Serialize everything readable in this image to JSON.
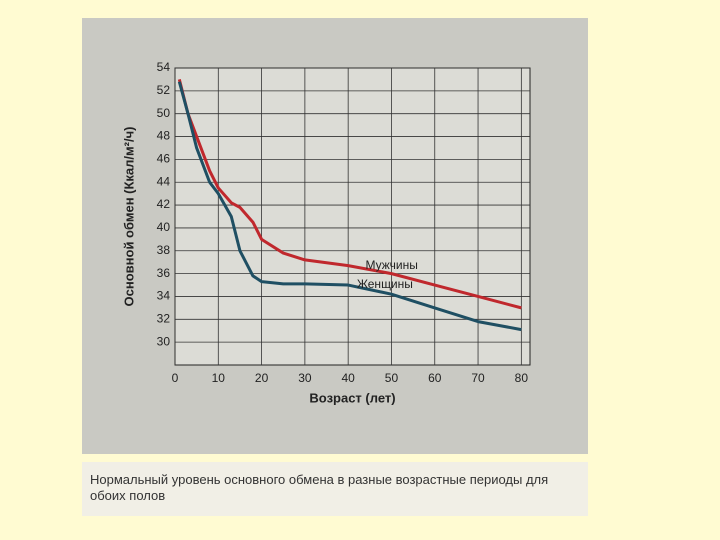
{
  "chart_data": {
    "type": "line",
    "caption": "Нормальный уровень основного обмена в разные возрастные периоды для обоих полов",
    "x_label": "Возраст (лет)",
    "y_label": "Основной обмен (Ккал/м²/ч)",
    "x": [
      1,
      3,
      5,
      8,
      10,
      13,
      15,
      18,
      20,
      25,
      30,
      40,
      50,
      60,
      70,
      80
    ],
    "series": [
      {
        "name": "Мужчины",
        "color": "#c0282d",
        "values": [
          53,
          50,
          48,
          45,
          43.5,
          42.2,
          41.8,
          40.5,
          39,
          37.8,
          37.2,
          36.7,
          36,
          35,
          34,
          33
        ]
      },
      {
        "name": "Женщины",
        "color": "#1f4f63",
        "values": [
          52.8,
          50,
          47,
          44,
          43,
          41,
          38,
          35.8,
          35.3,
          35.1,
          35.1,
          35,
          34.2,
          33,
          31.8,
          31.1
        ]
      }
    ],
    "xlim": [
      0,
      82
    ],
    "xticks": [
      0,
      10,
      20,
      30,
      40,
      50,
      60,
      70,
      80
    ],
    "ylim": [
      28,
      54
    ],
    "yticks": [
      30,
      32,
      34,
      36,
      38,
      40,
      42,
      44,
      46,
      48,
      50,
      52,
      54
    ],
    "grid": true
  }
}
